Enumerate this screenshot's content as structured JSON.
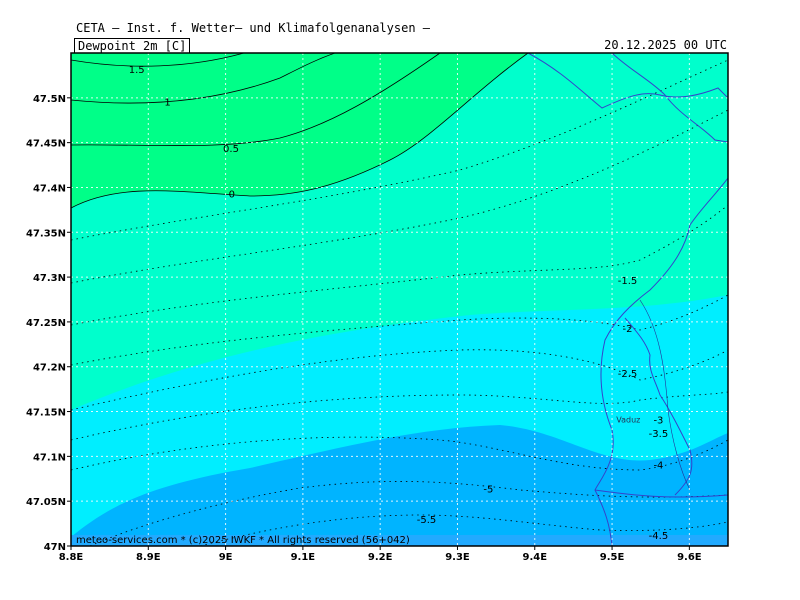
{
  "header": {
    "organization": "CETA — Inst. f. Wetter— und Klimafolgenanalysen —",
    "variable": "Dewpoint_2m_[C]",
    "valid_time": "20.12.2025 00 UTC"
  },
  "footer": {
    "credit": "meteo-services.com * (c)2025 IWKF * All rights reserved (56+042)"
  },
  "colors": {
    "band_0_to_1_5": "#00ff88",
    "band_neg1_5_to_0": "#00ffcc",
    "band_neg3_to_neg1_5": "#00eeff",
    "band_below_neg4_5": "#00b4ff",
    "band_bottom_strip": "#22aaff",
    "border_line": "#3344cc"
  },
  "chart_data": {
    "type": "heatmap",
    "title": "Dewpoint_2m_[C]",
    "x_ticks": [
      "8.8E",
      "8.9E",
      "9E",
      "9.1E",
      "9.2E",
      "9.3E",
      "9.4E",
      "9.5E",
      "9.6E"
    ],
    "x_values": [
      8.8,
      8.9,
      9.0,
      9.1,
      9.2,
      9.3,
      9.4,
      9.5,
      9.6
    ],
    "y_ticks": [
      "47N",
      "47.05N",
      "47.1N",
      "47.15N",
      "47.2N",
      "47.25N",
      "47.3N",
      "47.35N",
      "47.4N",
      "47.45N",
      "47.5N"
    ],
    "y_values": [
      47.0,
      47.05,
      47.1,
      47.15,
      47.2,
      47.25,
      47.3,
      47.35,
      47.4,
      47.45,
      47.5
    ],
    "xlim": [
      8.8,
      9.65
    ],
    "ylim": [
      47.0,
      47.55
    ],
    "grid": true,
    "contour_labels": [
      {
        "text": "1.5",
        "lon": 8.885,
        "lat": 47.532
      },
      {
        "text": "1",
        "lon": 8.925,
        "lat": 47.496
      },
      {
        "text": "0.5",
        "lon": 9.007,
        "lat": 47.444
      },
      {
        "text": "0",
        "lon": 9.008,
        "lat": 47.393
      },
      {
        "text": "-1.5",
        "lon": 9.52,
        "lat": 47.297
      },
      {
        "text": "-2",
        "lon": 9.52,
        "lat": 47.243
      },
      {
        "text": "-2.5",
        "lon": 9.52,
        "lat": 47.193
      },
      {
        "text": "-3",
        "lon": 9.56,
        "lat": 47.141
      },
      {
        "text": "-3.5",
        "lon": 9.56,
        "lat": 47.126
      },
      {
        "text": "-4",
        "lon": 9.56,
        "lat": 47.091
      },
      {
        "text": "-5",
        "lon": 9.34,
        "lat": 47.064
      },
      {
        "text": "-5.5",
        "lon": 9.26,
        "lat": 47.03
      },
      {
        "text": "-4.5",
        "lon": 9.56,
        "lat": 47.012
      }
    ],
    "place_labels": [
      {
        "text": "Vaduz",
        "lon": 9.521,
        "lat": 47.141
      }
    ]
  }
}
